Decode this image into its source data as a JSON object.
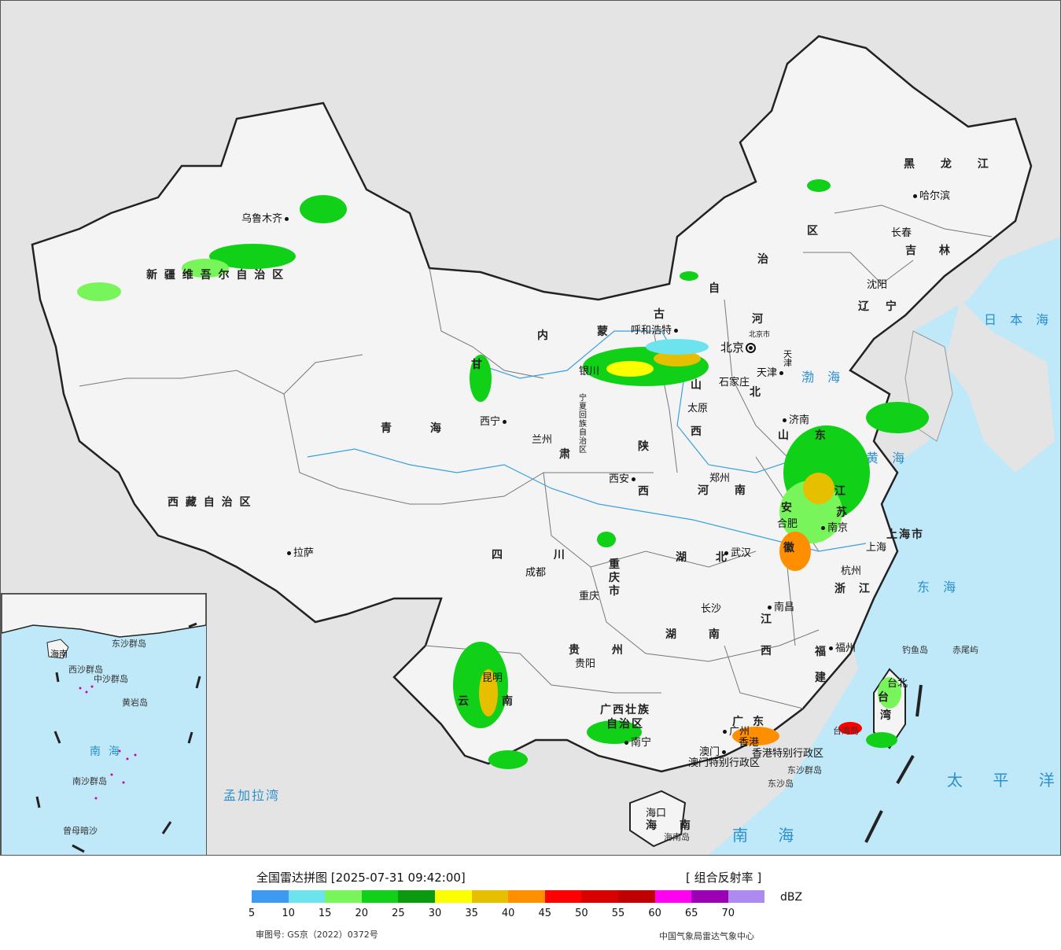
{
  "map": {
    "provinces": [
      {
        "key": "xinjiang",
        "label": "新 疆 维 吾 尔 自 治 区"
      },
      {
        "key": "xizang",
        "label": "西 藏 自 治 区"
      },
      {
        "key": "qinghai",
        "label": "青 海"
      },
      {
        "key": "gansu",
        "label": "甘"
      },
      {
        "key": "gansu2",
        "label": "肃"
      },
      {
        "key": "ningxia",
        "label": "宁夏回族自治区"
      },
      {
        "key": "neimenggu1",
        "label": "内"
      },
      {
        "key": "neimenggu2",
        "label": "蒙"
      },
      {
        "key": "neimenggu3",
        "label": "古"
      },
      {
        "key": "neimenggu4",
        "label": "自"
      },
      {
        "key": "neimenggu5",
        "label": "治"
      },
      {
        "key": "neimenggu6",
        "label": "区"
      },
      {
        "key": "heilongjiang",
        "label": "黑 龙 江"
      },
      {
        "key": "jilin",
        "label": "吉 林"
      },
      {
        "key": "liaoning",
        "label": "辽 宁"
      },
      {
        "key": "hebei1",
        "label": "河"
      },
      {
        "key": "hebei2",
        "label": "北"
      },
      {
        "key": "shanxi1",
        "label": "山"
      },
      {
        "key": "shanxi2",
        "label": "西"
      },
      {
        "key": "shaanxi1",
        "label": "陕"
      },
      {
        "key": "shaanxi2",
        "label": "西"
      },
      {
        "key": "shandong",
        "label": "山 东"
      },
      {
        "key": "henan",
        "label": "河 南"
      },
      {
        "key": "jiangsu1",
        "label": "江"
      },
      {
        "key": "jiangsu2",
        "label": "苏"
      },
      {
        "key": "anhui1",
        "label": "安"
      },
      {
        "key": "anhui2",
        "label": "徽"
      },
      {
        "key": "shanghai",
        "label": "上海市"
      },
      {
        "key": "zhejiang",
        "label": "浙 江"
      },
      {
        "key": "hubei",
        "label": "湖 北"
      },
      {
        "key": "sichuan",
        "label": "四 川"
      },
      {
        "key": "chongqing",
        "label": "重 庆 市"
      },
      {
        "key": "hunan",
        "label": "湖 南"
      },
      {
        "key": "jiangxi1",
        "label": "江"
      },
      {
        "key": "jiangxi2",
        "label": "西"
      },
      {
        "key": "fujian1",
        "label": "福"
      },
      {
        "key": "fujian2",
        "label": "建"
      },
      {
        "key": "guizhou",
        "label": "贵 州"
      },
      {
        "key": "yunnan1",
        "label": "云"
      },
      {
        "key": "yunnan2",
        "label": "南"
      },
      {
        "key": "guangxi1",
        "label": "广西壮族"
      },
      {
        "key": "guangxi2",
        "label": "自治区"
      },
      {
        "key": "guangdong1",
        "label": "广"
      },
      {
        "key": "guangdong2",
        "label": "东"
      },
      {
        "key": "hainan",
        "label": "海 南"
      },
      {
        "key": "taiwan1",
        "label": "台"
      },
      {
        "key": "taiwan2",
        "label": "湾"
      },
      {
        "key": "hongkong",
        "label": "香港特别行政区"
      },
      {
        "key": "macau",
        "label": "澳门特别行政区"
      },
      {
        "key": "tianjin",
        "label": "天津"
      },
      {
        "key": "beijing",
        "label": "北京市"
      }
    ],
    "cities": [
      {
        "key": "wulumuqi",
        "label": "乌鲁木齐"
      },
      {
        "key": "lasa",
        "label": "拉萨"
      },
      {
        "key": "xining",
        "label": "西宁"
      },
      {
        "key": "lanzhou",
        "label": "兰州"
      },
      {
        "key": "yinchuan",
        "label": "银川"
      },
      {
        "key": "huhehaote",
        "label": "呼和浩特"
      },
      {
        "key": "beijing",
        "label": "北京"
      },
      {
        "key": "tianjin",
        "label": "天津"
      },
      {
        "key": "shijiazhuang",
        "label": "石家庄"
      },
      {
        "key": "taiyuan",
        "label": "太原"
      },
      {
        "key": "xian",
        "label": "西安"
      },
      {
        "key": "zhengzhou",
        "label": "郑州"
      },
      {
        "key": "jinan",
        "label": "济南"
      },
      {
        "key": "shenyang",
        "label": "沈阳"
      },
      {
        "key": "changchun",
        "label": "长春"
      },
      {
        "key": "haerbin",
        "label": "哈尔滨"
      },
      {
        "key": "nanjing",
        "label": "南京"
      },
      {
        "key": "hefei",
        "label": "合肥"
      },
      {
        "key": "shanghai",
        "label": "上海"
      },
      {
        "key": "hangzhou",
        "label": "杭州"
      },
      {
        "key": "wuhan",
        "label": "武汉"
      },
      {
        "key": "chengdu",
        "label": "成都"
      },
      {
        "key": "chongqing",
        "label": "重庆"
      },
      {
        "key": "changsha",
        "label": "长沙"
      },
      {
        "key": "nanchang",
        "label": "南昌"
      },
      {
        "key": "fuzhou",
        "label": "福州"
      },
      {
        "key": "guiyang",
        "label": "贵阳"
      },
      {
        "key": "kunming",
        "label": "昆明"
      },
      {
        "key": "nanning",
        "label": "南宁"
      },
      {
        "key": "guangzhou",
        "label": "广州"
      },
      {
        "key": "aomen",
        "label": "澳门"
      },
      {
        "key": "xianggang",
        "label": "香港"
      },
      {
        "key": "haikou",
        "label": "海口"
      },
      {
        "key": "taibei",
        "label": "台北"
      }
    ],
    "seas": [
      {
        "key": "bohai",
        "label": "渤 海"
      },
      {
        "key": "huanghai",
        "label": "黄 海"
      },
      {
        "key": "donghai",
        "label": "东 海"
      },
      {
        "key": "nanhai",
        "label": "南 海"
      },
      {
        "key": "taipingyang",
        "label": "太 平 洋"
      },
      {
        "key": "ribenhai",
        "label": "日 本 海"
      },
      {
        "key": "mengjialawan",
        "label": "孟加拉湾"
      }
    ],
    "islands": [
      {
        "key": "diaoyudao",
        "label": "钓鱼岛"
      },
      {
        "key": "chiweiyu",
        "label": "赤尾屿"
      },
      {
        "key": "taiwandao",
        "label": "台湾岛"
      },
      {
        "key": "dongshaqundao",
        "label": "东沙群岛"
      },
      {
        "key": "dongshadao",
        "label": "东沙岛"
      },
      {
        "key": "hainandao",
        "label": "海南岛"
      }
    ],
    "inset": {
      "labels": [
        "海南",
        "南海",
        "西沙群岛",
        "中沙群岛",
        "黄岩岛",
        "南沙群岛",
        "曾母暗沙",
        "东沙群岛"
      ]
    }
  },
  "legend": {
    "title": "全国雷达拼图 [2025-07-31 09:42:00]",
    "product": "[ 组合反射率 ]",
    "unit": "dBZ",
    "colors": [
      "#3d9af0",
      "#6de3ee",
      "#78f55a",
      "#10d018",
      "#0a9a10",
      "#fbff00",
      "#e6c000",
      "#ff8e00",
      "#ff0000",
      "#d90000",
      "#c00000",
      "#ff00f0",
      "#9a00b4",
      "#ad8aef"
    ],
    "ticks": [
      "5",
      "10",
      "15",
      "20",
      "25",
      "30",
      "35",
      "40",
      "45",
      "50",
      "55",
      "60",
      "65",
      "70"
    ],
    "approval": "审图号: GS京（2022）0372号",
    "producer": "中国气象局雷达气象中心"
  }
}
